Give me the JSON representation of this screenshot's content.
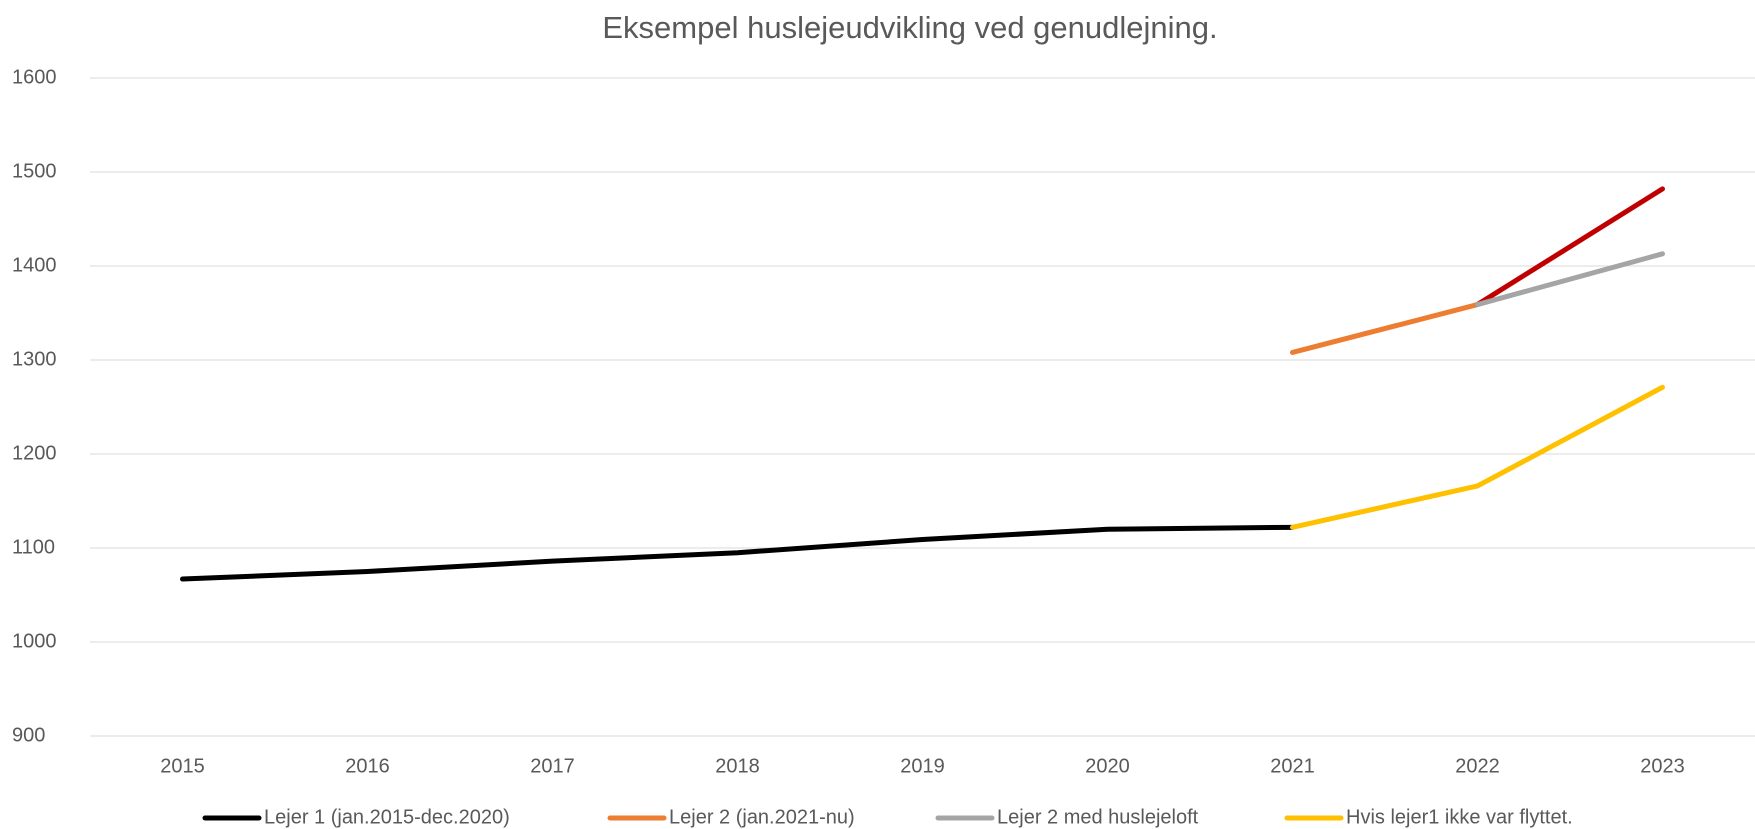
{
  "chart_data": {
    "type": "line",
    "title": "Eksempel huslejeudvikling ved genudlejning.",
    "categories": [
      "2015",
      "2016",
      "2017",
      "2018",
      "2019",
      "2020",
      "2021",
      "2022",
      "2023"
    ],
    "series": [
      {
        "name": "Lejer 1 (jan.2015-dec.2020)",
        "color": "#000000",
        "values": [
          1067,
          1075,
          1086,
          1095,
          1109,
          1120,
          1122,
          null,
          null
        ]
      },
      {
        "name": "Lejer 2 (jan.2021-nu)",
        "color": "#ed7d31",
        "values": [
          null,
          null,
          null,
          null,
          null,
          null,
          1308,
          1359,
          null
        ]
      },
      {
        "color": "#c00000",
        "values": [
          null,
          null,
          null,
          null,
          null,
          null,
          null,
          1359,
          1482
        ]
      },
      {
        "name": "Lejer 2 med huslejeloft",
        "color": "#a5a5a5",
        "values": [
          null,
          null,
          null,
          null,
          null,
          null,
          null,
          1359,
          1413
        ]
      },
      {
        "name": "Hvis lejer1 ikke var flyttet.",
        "color": "#ffc000",
        "values": [
          null,
          null,
          null,
          null,
          null,
          null,
          1122,
          1166,
          1271
        ]
      }
    ],
    "ylim": [
      900,
      1600
    ],
    "yticks": [
      900,
      1000,
      1100,
      1200,
      1300,
      1400,
      1500,
      1600
    ],
    "grid": true,
    "legend": "bottom"
  }
}
